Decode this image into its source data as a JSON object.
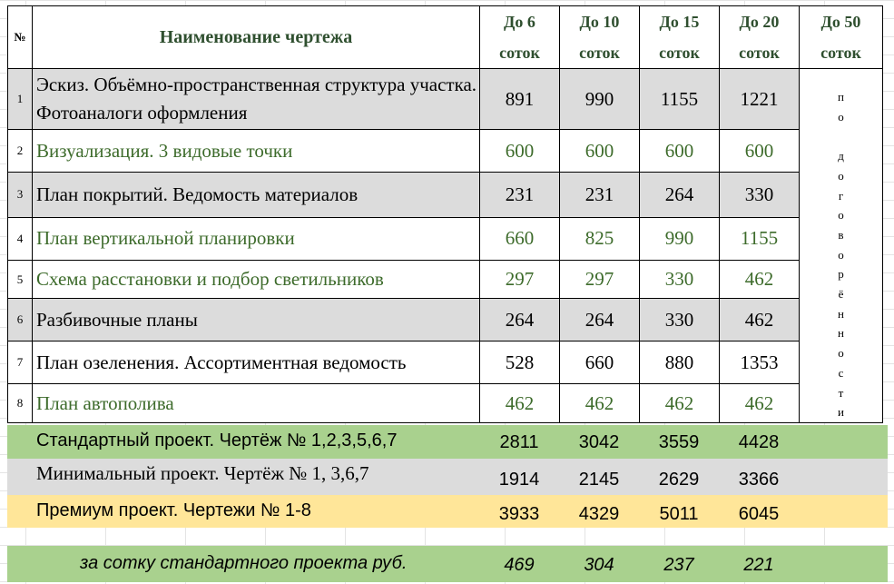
{
  "header": {
    "no": "№",
    "title": "Наименование чертежа",
    "columns": [
      {
        "l1": "До 6",
        "l2": "соток"
      },
      {
        "l1": "До 10",
        "l2": "соток"
      },
      {
        "l1": "До 15",
        "l2": "соток"
      },
      {
        "l1": "До 20",
        "l2": "соток"
      },
      {
        "l1": "До 50",
        "l2": "соток"
      }
    ]
  },
  "rows": [
    {
      "n": "1",
      "name": "Эскиз. Объёмно-пространственная структура участка. Фотоаналоги оформления",
      "values": [
        "891",
        "990",
        "1155",
        "1221"
      ]
    },
    {
      "n": "2",
      "name": " Визуализация. 3 видовые точки",
      "values": [
        "600",
        "600",
        "600",
        "600"
      ]
    },
    {
      "n": "3",
      "name": " План покрытий. Ведомость материалов",
      "values": [
        "231",
        "231",
        "264",
        "330"
      ]
    },
    {
      "n": "4",
      "name": "План вертикальной планировки",
      "values": [
        "660",
        "825",
        "990",
        "1155"
      ]
    },
    {
      "n": "5",
      "name": "Схема расстановки и подбор светильников",
      "values": [
        "297",
        "297",
        "330",
        "462"
      ]
    },
    {
      "n": "6",
      "name": "Разбивочные планы",
      "values": [
        "264",
        "264",
        "330",
        "462"
      ]
    },
    {
      "n": "7",
      "name": "План озеленения. Ассортиментная ведомость",
      "values": [
        "528",
        "660",
        "880",
        "1353"
      ]
    },
    {
      "n": "8",
      "name": " План автополива",
      "values": [
        "462",
        "462",
        "462",
        "462"
      ]
    }
  ],
  "vertical_note": [
    "п",
    "о",
    "",
    "д",
    "о",
    "г",
    "о",
    "в",
    "о",
    "р",
    "ё",
    "н",
    "н",
    "о",
    "с",
    "т",
    "и"
  ],
  "summary": [
    {
      "label": "Стандартный проект. Чертёж № 1,2,3,5,6,7",
      "values": [
        "2811",
        "3042",
        "3559",
        "4428"
      ]
    },
    {
      "label": "Минимальный проект. Чертёж № 1, 3,6,7",
      "values": [
        "1914",
        "2145",
        "2629",
        "3366"
      ]
    },
    {
      "label": "Премиум проект. Чертежи  № 1-8",
      "values": [
        "3933",
        "4329",
        "5011",
        "6045"
      ]
    },
    {
      "label": "за сотку стандартного проекта руб.",
      "values": [
        "469",
        "304",
        "237",
        "221"
      ]
    }
  ],
  "colors": {
    "green_text": "#3d6b2b",
    "header_text": "#2f4f2f",
    "gray_fill": "#dcdcdc",
    "green_fill": "#a9d18e",
    "yellow_fill": "#ffe699"
  }
}
